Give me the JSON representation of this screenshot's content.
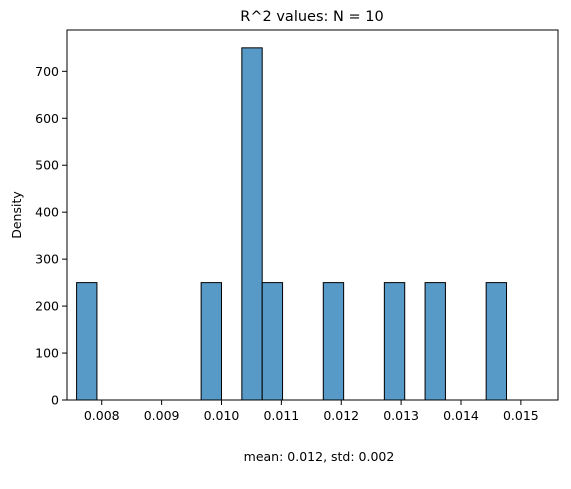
{
  "chart_data": {
    "type": "bar",
    "title": "R^2 values: N = 10",
    "xlabel": "",
    "ylabel": "Density",
    "footnote": "mean: 0.012, std: 0.002",
    "bar_color": "#5799c7",
    "edge_color": "#000000",
    "xlim": [
      0.00742,
      0.01562
    ],
    "ylim": [
      0,
      788
    ],
    "x_ticks": [
      0.008,
      0.009,
      0.01,
      0.011,
      0.012,
      0.013,
      0.014,
      0.015
    ],
    "x_tick_labels": [
      "0.008",
      "0.009",
      "0.010",
      "0.011",
      "0.012",
      "0.013",
      "0.014",
      "0.015"
    ],
    "y_ticks": [
      0,
      100,
      200,
      300,
      400,
      500,
      600,
      700
    ],
    "y_tick_labels": [
      "0",
      "100",
      "200",
      "300",
      "400",
      "500",
      "600",
      "700"
    ],
    "bins": [
      {
        "x0": 0.00758,
        "x1": 0.00792,
        "value": 250
      },
      {
        "x0": 0.00966,
        "x1": 0.01,
        "value": 250
      },
      {
        "x0": 0.01034,
        "x1": 0.01068,
        "value": 750
      },
      {
        "x0": 0.01068,
        "x1": 0.01102,
        "value": 250
      },
      {
        "x0": 0.0117,
        "x1": 0.01204,
        "value": 250
      },
      {
        "x0": 0.01272,
        "x1": 0.01306,
        "value": 250
      },
      {
        "x0": 0.0134,
        "x1": 0.01374,
        "value": 250
      },
      {
        "x0": 0.01442,
        "x1": 0.01476,
        "value": 250
      }
    ],
    "grid": false,
    "legend": "none"
  }
}
